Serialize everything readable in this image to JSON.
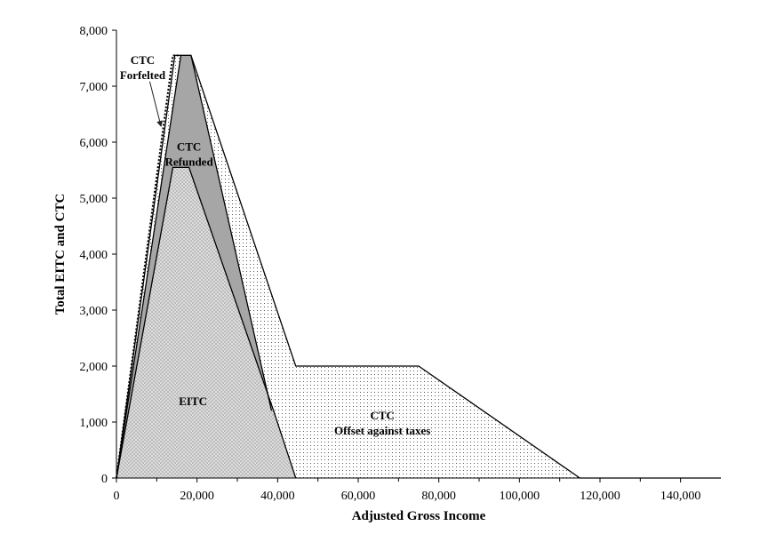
{
  "chart_data": {
    "type": "area",
    "title": "",
    "xlabel": "Adjusted Gross Income",
    "ylabel": "Total EITC and CTC",
    "xlim": [
      0,
      150000
    ],
    "ylim": [
      0,
      8000
    ],
    "x_ticks": [
      0,
      20000,
      40000,
      60000,
      80000,
      100000,
      120000,
      140000
    ],
    "x_tick_labels": [
      "0",
      "20,000",
      "40,000",
      "60,000",
      "80,000",
      "100,000",
      "120,000",
      "140,000"
    ],
    "y_ticks": [
      0,
      1000,
      2000,
      3000,
      4000,
      5000,
      6000,
      7000,
      8000
    ],
    "y_tick_labels": [
      "0",
      "1,000",
      "2,000",
      "3,000",
      "4,000",
      "5,000",
      "6,000",
      "7,000",
      "8,000"
    ],
    "grid": false,
    "legend": "none",
    "series": [
      {
        "key": "eitc",
        "label": "EITC",
        "x": [
          0,
          14000,
          18000,
          39000,
          44500
        ],
        "y": [
          0,
          5550,
          5550,
          1200,
          0
        ]
      },
      {
        "key": "eitc_plus_refunded",
        "label": "CTC Refunded",
        "x": [
          0,
          16000,
          18500,
          38500
        ],
        "y": [
          0,
          7550,
          7550,
          1200
        ]
      },
      {
        "key": "total_potential",
        "label": "CTC Offset against taxes",
        "x": [
          0,
          14500,
          18500,
          44500,
          75000,
          115000,
          150000
        ],
        "y": [
          0,
          7550,
          7550,
          2000,
          2000,
          0,
          0
        ]
      },
      {
        "key": "forfeited_boundary",
        "label": "CTC Forfelted",
        "x": [
          0,
          14000,
          16000
        ],
        "y": [
          0,
          7550,
          7550
        ]
      }
    ],
    "annotations": [
      {
        "key": "eitc",
        "lines": [
          "EITC"
        ],
        "x": 19000,
        "y": 1300
      },
      {
        "key": "refunded",
        "lines": [
          "CTC",
          "Refunded"
        ],
        "x": 18000,
        "y": 5850
      },
      {
        "key": "offset",
        "lines": [
          "CTC",
          "Offset against taxes"
        ],
        "x": 66000,
        "y": 1050
      },
      {
        "key": "forfeited",
        "lines": [
          "CTC",
          "Forfelted"
        ],
        "x": 6500,
        "y": 7400
      }
    ]
  }
}
